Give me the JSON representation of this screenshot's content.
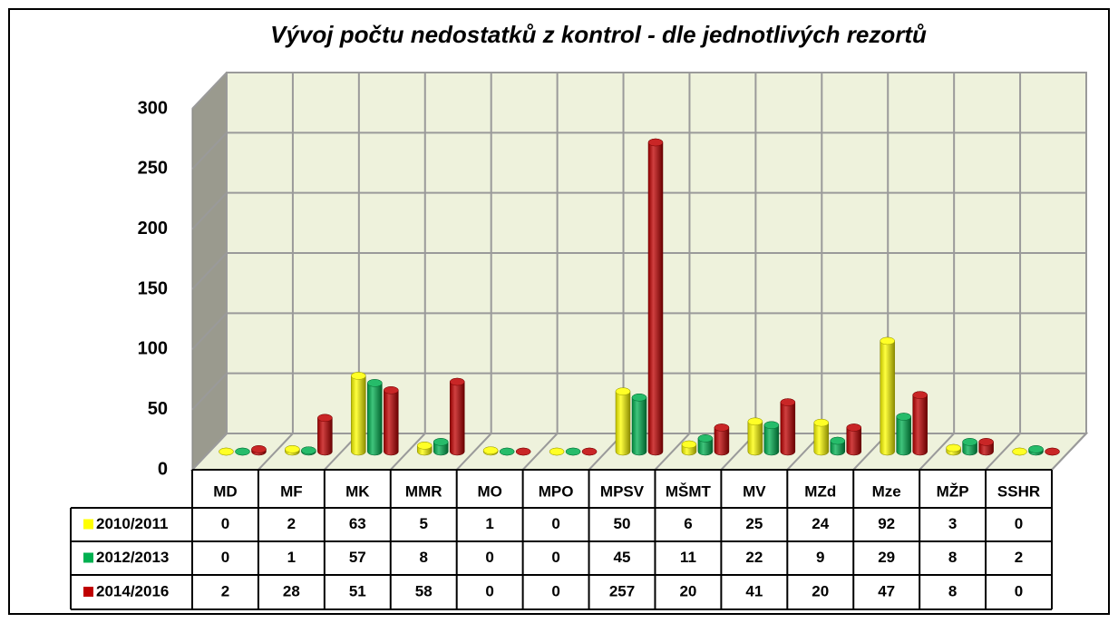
{
  "chart_data": {
    "type": "bar3d",
    "title": "Vývoj počtu nedostatků z kontrol - dle jednotlivých rezortů",
    "categories": [
      "MD",
      "MF",
      "MK",
      "MMR",
      "MO",
      "MPO",
      "MPSV",
      "MŠMT",
      "MV",
      "MZd",
      "Mze",
      "MŽP",
      "SSHR"
    ],
    "series": [
      {
        "name": "2010/2011",
        "color": "#ffff00",
        "values": [
          0,
          2,
          63,
          5,
          1,
          0,
          50,
          6,
          25,
          24,
          92,
          3,
          0
        ]
      },
      {
        "name": "2012/2013",
        "color": "#00b050",
        "values": [
          0,
          1,
          57,
          8,
          0,
          0,
          45,
          11,
          22,
          9,
          29,
          8,
          2
        ]
      },
      {
        "name": "2014/2016",
        "color": "#c00000",
        "values": [
          2,
          28,
          51,
          58,
          0,
          0,
          257,
          20,
          41,
          20,
          47,
          8,
          0
        ]
      }
    ],
    "ylim": [
      0,
      300
    ],
    "yticks": [
      0,
      50,
      100,
      150,
      200,
      250,
      300
    ],
    "grid": true,
    "data_table": true
  }
}
